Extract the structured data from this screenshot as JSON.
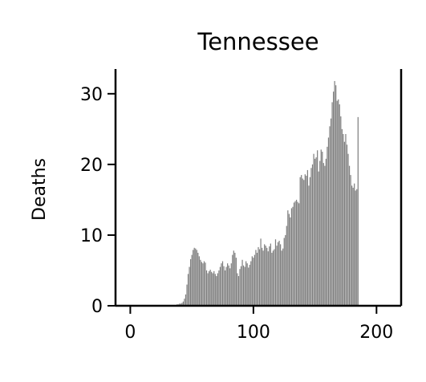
{
  "chart_data": {
    "type": "bar",
    "title": "Tennessee",
    "xlabel": "",
    "ylabel": "Deaths",
    "xlim": [
      -12,
      220
    ],
    "ylim": [
      0,
      33.5
    ],
    "x_ticks": [
      0,
      100,
      200
    ],
    "y_ticks": [
      0,
      10,
      20,
      30
    ],
    "grid": false,
    "bar_color": "#808080",
    "values": [
      0,
      0,
      0,
      0,
      0,
      0,
      0,
      0,
      0,
      0,
      0,
      0,
      0,
      0,
      0,
      0,
      0,
      0,
      0,
      0,
      0,
      0,
      0,
      0,
      0,
      0,
      0,
      0,
      0,
      0,
      0,
      0,
      0,
      0,
      0,
      0,
      0,
      0.1,
      0.2,
      0.2,
      0.3,
      0.3,
      0.4,
      0.6,
      1.0,
      1.6,
      3.0,
      4.5,
      5.5,
      6.6,
      7.2,
      7.9,
      8.2,
      8.1,
      7.9,
      7.5,
      7.0,
      6.5,
      6.2,
      6.0,
      6.3,
      6.1,
      5.0,
      4.6,
      4.9,
      5.1,
      4.8,
      4.6,
      4.9,
      4.5,
      4.2,
      4.6,
      5.0,
      5.5,
      6.0,
      6.3,
      5.6,
      5.0,
      5.5,
      6.0,
      5.7,
      5.3,
      6.0,
      7.2,
      7.8,
      7.5,
      6.8,
      4.6,
      4.2,
      5.2,
      5.6,
      6.5,
      5.7,
      5.5,
      6.3,
      6.0,
      5.4,
      5.8,
      6.3,
      7.0,
      6.8,
      7.2,
      7.9,
      7.5,
      8.3,
      8.0,
      9.5,
      8.2,
      7.8,
      8.7,
      8.5,
      8.2,
      7.7,
      8.4,
      8.8,
      7.5,
      7.8,
      8.0,
      9.4,
      8.5,
      9.0,
      9.2,
      8.7,
      7.8,
      8.1,
      9.6,
      10.0,
      11.3,
      13.5,
      13.0,
      12.5,
      13.8,
      14.0,
      14.6,
      14.8,
      15.0,
      14.7,
      14.5,
      18.2,
      18.5,
      18.0,
      17.8,
      18.6,
      18.4,
      19.2,
      17.0,
      18.2,
      19.5,
      20.0,
      21.5,
      20.8,
      21.0,
      22.0,
      19.0,
      20.5,
      22.1,
      21.8,
      20.2,
      19.8,
      20.8,
      22.5,
      23.8,
      25.4,
      26.5,
      28.8,
      30.3,
      31.8,
      31.2,
      29.0,
      29.2,
      28.5,
      26.8,
      25.0,
      24.3,
      23.2,
      24.3,
      22.8,
      21.5,
      19.8,
      18.5,
      17.0,
      16.7,
      17.3,
      16.3,
      16.5,
      26.7
    ]
  }
}
